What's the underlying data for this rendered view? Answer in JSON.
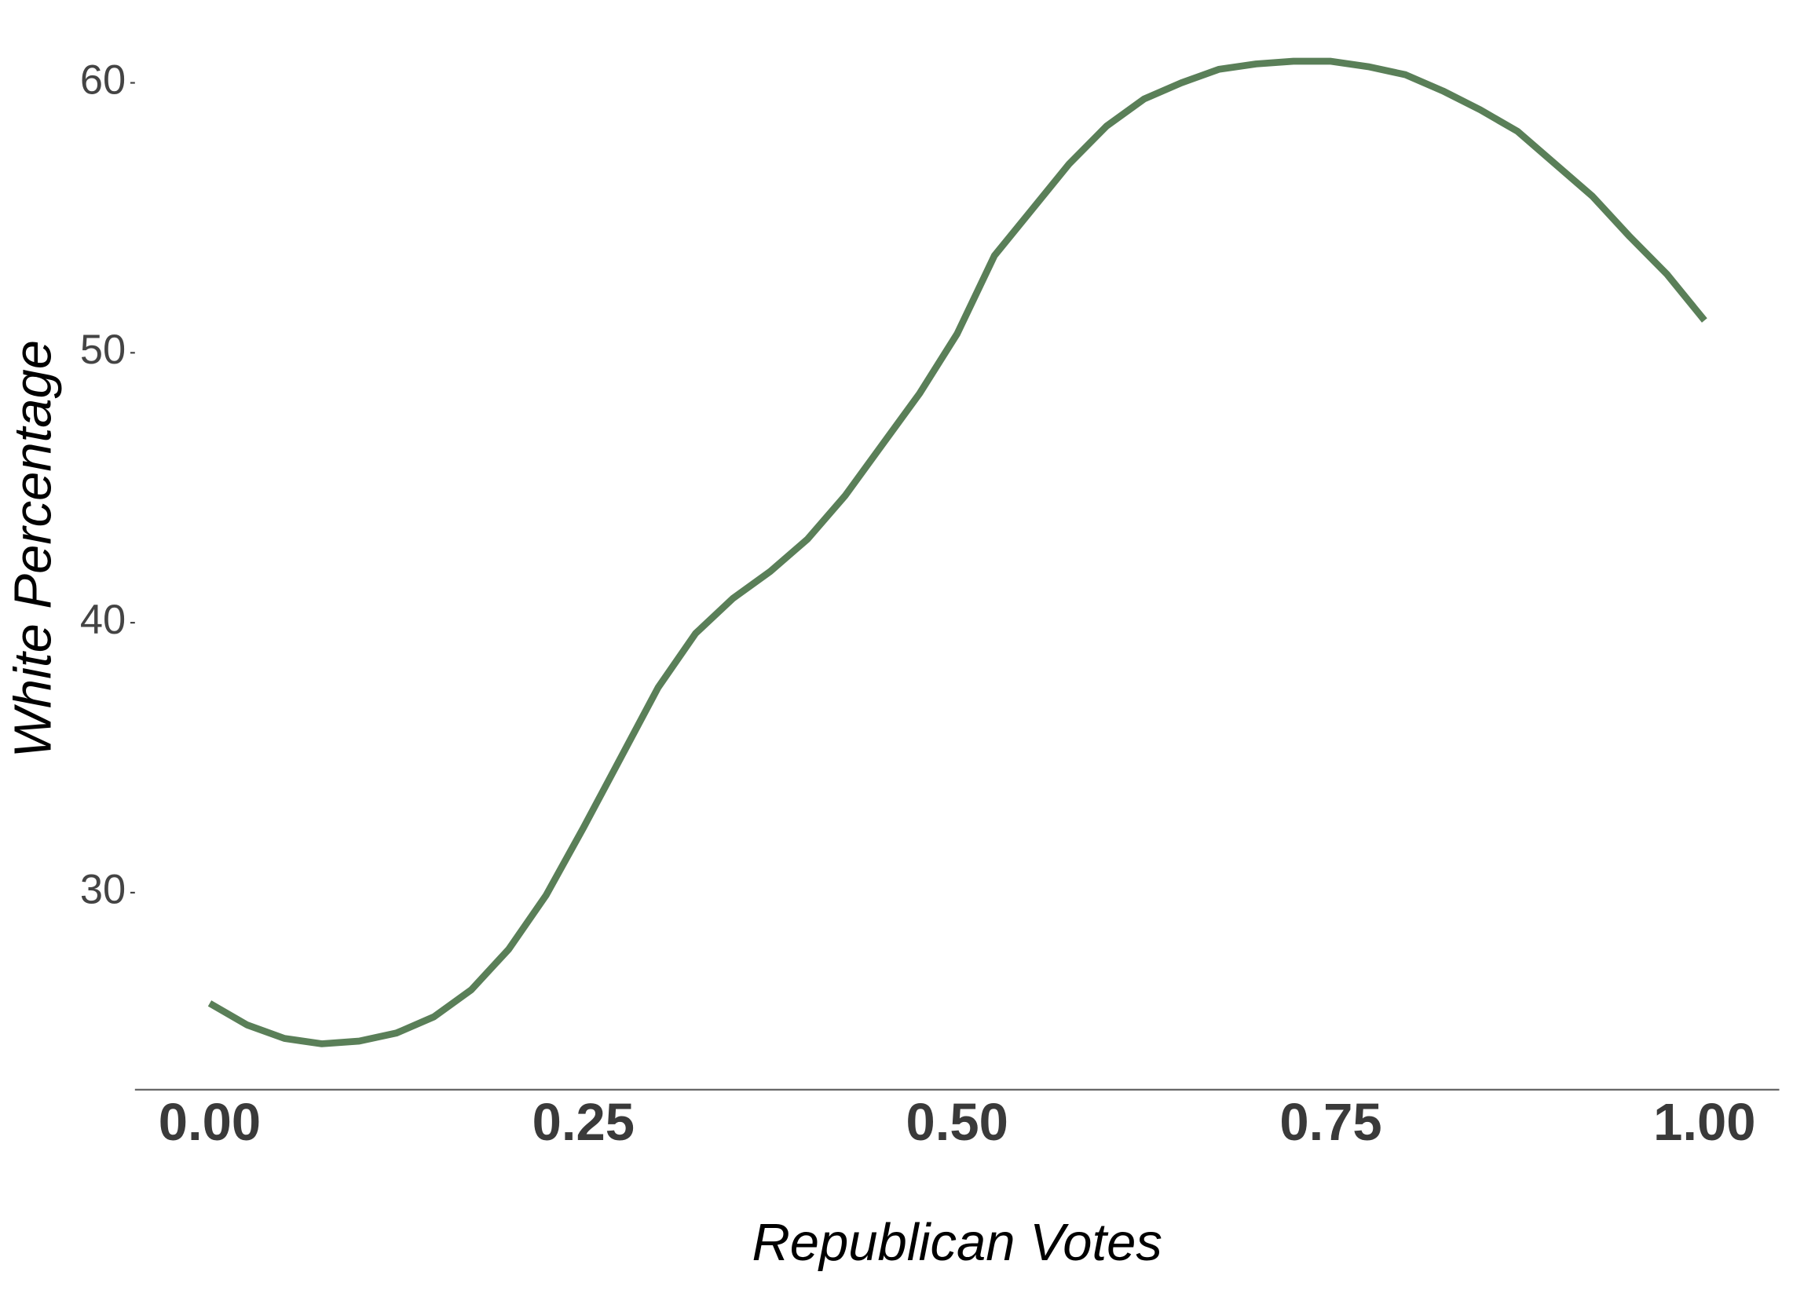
{
  "chart_data": {
    "type": "line",
    "x_label": "Republican Votes",
    "y_label": "White Percentage",
    "x": [
      0,
      0.025,
      0.05,
      0.075,
      0.1,
      0.125,
      0.15,
      0.175,
      0.2,
      0.225,
      0.25,
      0.275,
      0.3,
      0.325,
      0.35,
      0.375,
      0.4,
      0.425,
      0.45,
      0.475,
      0.5,
      0.525,
      0.55,
      0.575,
      0.6,
      0.625,
      0.65,
      0.675,
      0.7,
      0.725,
      0.75,
      0.775,
      0.8,
      0.825,
      0.85,
      0.875,
      0.9,
      0.925,
      0.95,
      0.975,
      1.0
    ],
    "series": [
      {
        "color": "#5a7f58",
        "values": [
          25.9,
          25.1,
          24.6,
          24.4,
          24.5,
          24.8,
          25.4,
          26.4,
          27.9,
          29.9,
          32.4,
          35.0,
          37.6,
          39.6,
          40.9,
          41.9,
          43.1,
          44.7,
          46.6,
          48.5,
          50.7,
          53.6,
          55.3,
          57.0,
          58.4,
          59.4,
          60.0,
          60.5,
          60.7,
          60.8,
          60.8,
          60.6,
          60.3,
          59.7,
          59.0,
          58.2,
          57.0,
          55.8,
          54.3,
          52.9,
          51.2
        ]
      }
    ],
    "xlim": [
      -0.05,
      1.05
    ],
    "xticks": [
      {
        "value": 0,
        "label": "0.00"
      },
      {
        "value": 0.25,
        "label": "0.25"
      },
      {
        "value": 0.5,
        "label": "0.50"
      },
      {
        "value": 0.75,
        "label": "0.75"
      },
      {
        "value": 1,
        "label": "1.00"
      }
    ],
    "ylim": [
      22.7,
      62.7
    ],
    "yticks": [
      30,
      40,
      50,
      60
    ],
    "grid": false
  }
}
